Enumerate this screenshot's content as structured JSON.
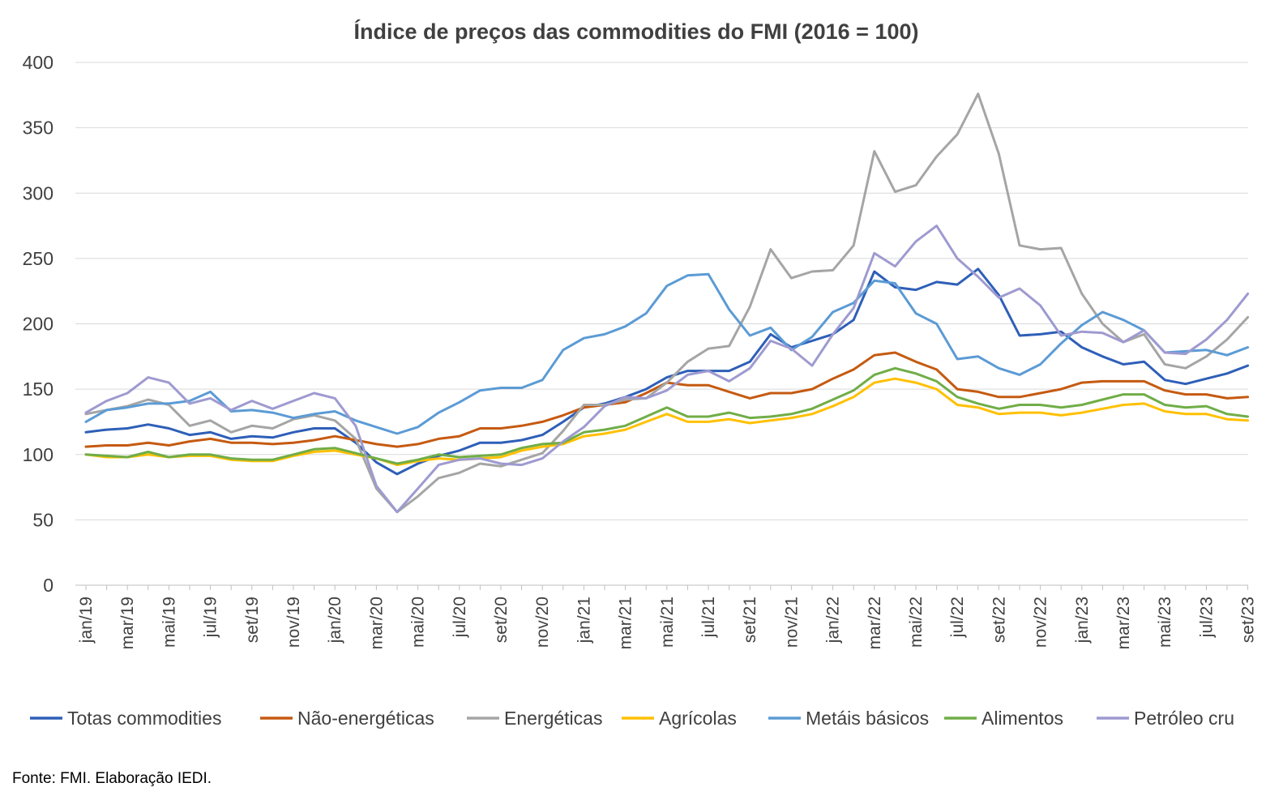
{
  "chart_data": {
    "type": "line",
    "title": "Índice de preços das commodities do FMI  (2016 = 100)",
    "xlabel": "",
    "ylabel": "",
    "ylim": [
      0,
      400
    ],
    "yticks": [
      0,
      50,
      100,
      150,
      200,
      250,
      300,
      350,
      400
    ],
    "grid": true,
    "legend_position": "bottom",
    "x": [
      "jan/19",
      "fev/19",
      "mar/19",
      "abr/19",
      "mai/19",
      "jun/19",
      "jul/19",
      "ago/19",
      "set/19",
      "out/19",
      "nov/19",
      "dez/19",
      "jan/20",
      "fev/20",
      "mar/20",
      "abr/20",
      "mai/20",
      "jun/20",
      "jul/20",
      "ago/20",
      "set/20",
      "out/20",
      "nov/20",
      "dez/20",
      "jan/21",
      "fev/21",
      "mar/21",
      "abr/21",
      "mai/21",
      "jun/21",
      "jul/21",
      "ago/21",
      "set/21",
      "out/21",
      "nov/21",
      "dez/21",
      "jan/22",
      "fev/22",
      "mar/22",
      "abr/22",
      "mai/22",
      "jun/22",
      "jul/22",
      "ago/22",
      "set/22",
      "out/22",
      "nov/22",
      "dez/22",
      "jan/23",
      "fev/23",
      "mar/23",
      "abr/23",
      "mai/23",
      "jun/23",
      "jul/23",
      "ago/23",
      "set/23"
    ],
    "x_tick_labels": [
      "jan/19",
      "mar/19",
      "mai/19",
      "jul/19",
      "set/19",
      "nov/19",
      "jan/20",
      "mar/20",
      "mai/20",
      "jul/20",
      "set/20",
      "nov/20",
      "jan/21",
      "mar/21",
      "mai/21",
      "jul/21",
      "set/21",
      "nov/21",
      "jan/22",
      "mar/22",
      "mai/22",
      "jul/22",
      "set/22",
      "nov/22",
      "jan/23",
      "mar/23",
      "mai/23",
      "jul/23",
      "set/23"
    ],
    "series": [
      {
        "name": "Totas commodities",
        "color": "#2E5FB8",
        "values": [
          117,
          119,
          120,
          123,
          120,
          115,
          117,
          112,
          114,
          113,
          117,
          120,
          120,
          109,
          94,
          85,
          93,
          99,
          103,
          109,
          109,
          111,
          115,
          125,
          136,
          139,
          144,
          150,
          159,
          164,
          164,
          164,
          171,
          192,
          182,
          187,
          192,
          203,
          240,
          228,
          226,
          232,
          230,
          242,
          222,
          191,
          192,
          194,
          182,
          175,
          169,
          171,
          157,
          154,
          158,
          162,
          168
        ]
      },
      {
        "name": "Não-energéticas",
        "color": "#C55A11",
        "values": [
          106,
          107,
          107,
          109,
          107,
          110,
          112,
          109,
          109,
          108,
          109,
          111,
          114,
          111,
          108,
          106,
          108,
          112,
          114,
          120,
          120,
          122,
          125,
          130,
          136,
          138,
          140,
          147,
          155,
          153,
          153,
          148,
          143,
          147,
          147,
          150,
          158,
          165,
          176,
          178,
          171,
          165,
          150,
          148,
          144,
          144,
          147,
          150,
          155,
          156,
          156,
          156,
          149,
          146,
          146,
          143,
          144
        ]
      },
      {
        "name": "Energéticas",
        "color": "#A5A5A5",
        "values": [
          131,
          134,
          137,
          142,
          138,
          122,
          126,
          117,
          122,
          120,
          127,
          130,
          126,
          112,
          74,
          56,
          68,
          82,
          86,
          93,
          91,
          96,
          101,
          118,
          138,
          138,
          142,
          143,
          155,
          171,
          181,
          183,
          213,
          257,
          235,
          240,
          241,
          260,
          332,
          301,
          306,
          328,
          345,
          376,
          330,
          260,
          257,
          258,
          223,
          200,
          186,
          192,
          169,
          166,
          175,
          188,
          205
        ]
      },
      {
        "name": "Agrícolas",
        "color": "#FFC000",
        "values": [
          100,
          98,
          98,
          100,
          98,
          99,
          99,
          96,
          95,
          95,
          99,
          102,
          103,
          100,
          97,
          92,
          95,
          97,
          96,
          97,
          98,
          103,
          106,
          108,
          114,
          116,
          119,
          125,
          131,
          125,
          125,
          127,
          124,
          126,
          128,
          131,
          137,
          144,
          155,
          158,
          155,
          150,
          138,
          136,
          131,
          132,
          132,
          130,
          132,
          135,
          138,
          139,
          133,
          131,
          131,
          127,
          126
        ]
      },
      {
        "name": "Metáis básicos",
        "color": "#5B9BD5",
        "values": [
          125,
          134,
          136,
          139,
          139,
          141,
          148,
          133,
          134,
          132,
          128,
          131,
          133,
          126,
          121,
          116,
          121,
          132,
          140,
          149,
          151,
          151,
          157,
          180,
          189,
          192,
          198,
          208,
          229,
          237,
          238,
          211,
          191,
          197,
          180,
          190,
          209,
          216,
          233,
          231,
          208,
          200,
          173,
          175,
          166,
          161,
          169,
          185,
          199,
          209,
          203,
          195,
          178,
          179,
          180,
          176,
          182
        ]
      },
      {
        "name": "Alimentos",
        "color": "#70AD47",
        "values": [
          100,
          99,
          98,
          102,
          98,
          100,
          100,
          97,
          96,
          96,
          100,
          104,
          105,
          101,
          97,
          93,
          96,
          100,
          98,
          99,
          100,
          105,
          108,
          109,
          117,
          119,
          122,
          129,
          136,
          129,
          129,
          132,
          128,
          129,
          131,
          135,
          142,
          149,
          161,
          166,
          162,
          156,
          144,
          139,
          135,
          138,
          138,
          136,
          138,
          142,
          146,
          146,
          138,
          136,
          137,
          131,
          129
        ]
      },
      {
        "name": "Petróleo cru",
        "color": "#9E9AD0",
        "values": [
          132,
          141,
          147,
          159,
          155,
          139,
          143,
          134,
          141,
          135,
          141,
          147,
          143,
          122,
          76,
          56,
          74,
          92,
          96,
          97,
          93,
          92,
          97,
          110,
          121,
          137,
          144,
          143,
          149,
          161,
          164,
          156,
          166,
          187,
          181,
          168,
          192,
          212,
          254,
          244,
          263,
          275,
          250,
          236,
          220,
          227,
          214,
          191,
          194,
          193,
          186,
          195,
          178,
          177,
          188,
          203,
          223
        ]
      }
    ],
    "source": "Fonte: FMI. Elaboração IEDI."
  }
}
